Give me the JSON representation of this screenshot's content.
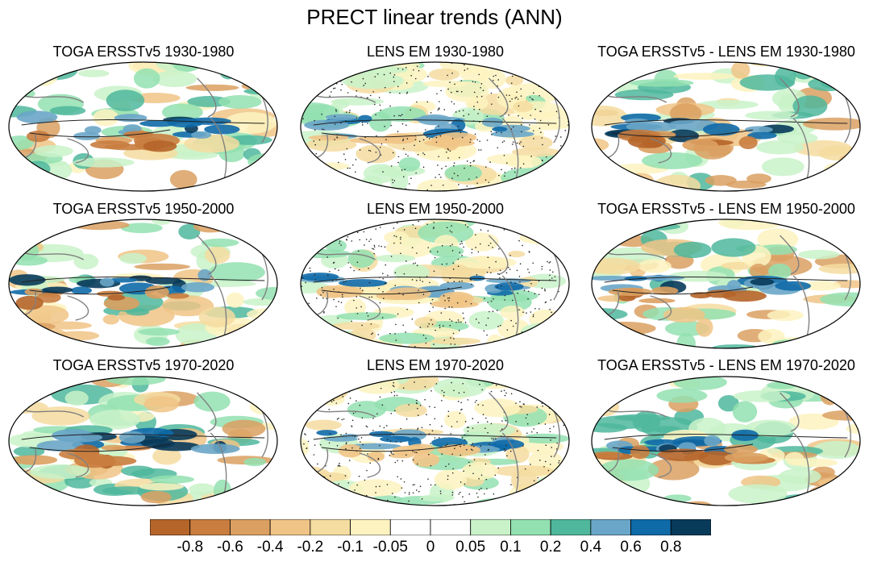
{
  "chart_data": {
    "type": "heatmap",
    "title": "PRECT linear trends (ANN)",
    "projection": "Robinson (global, Pacific-centered)",
    "variable": "PRECT",
    "season": "ANN",
    "panels": [
      {
        "row": 0,
        "col": 0,
        "title": "TOGA ERSSTv5 1930-1980",
        "stippling": false
      },
      {
        "row": 0,
        "col": 1,
        "title": "LENS EM 1930-1980",
        "stippling": true
      },
      {
        "row": 0,
        "col": 2,
        "title": "TOGA ERSSTv5 - LENS EM 1930-1980",
        "stippling": false
      },
      {
        "row": 1,
        "col": 0,
        "title": "TOGA ERSSTv5 1950-2000",
        "stippling": false
      },
      {
        "row": 1,
        "col": 1,
        "title": "LENS EM 1950-2000",
        "stippling": true
      },
      {
        "row": 1,
        "col": 2,
        "title": "TOGA ERSSTv5 - LENS EM 1950-2000",
        "stippling": false
      },
      {
        "row": 2,
        "col": 0,
        "title": "TOGA ERSSTv5 1970-2020",
        "stippling": false
      },
      {
        "row": 2,
        "col": 1,
        "title": "LENS EM 1970-2020",
        "stippling": true
      },
      {
        "row": 2,
        "col": 2,
        "title": "TOGA ERSSTv5 - LENS EM 1970-2020",
        "stippling": false
      }
    ],
    "colorbar": {
      "orientation": "horizontal",
      "placement": "bottom",
      "tick_labels": [
        "-0.8",
        "-0.6",
        "-0.4",
        "-0.2",
        "-0.1",
        "-0.05",
        "0",
        "0.05",
        "0.1",
        "0.2",
        "0.4",
        "0.6",
        "0.8"
      ],
      "levels": [
        -0.8,
        -0.6,
        -0.4,
        -0.2,
        -0.1,
        -0.05,
        0,
        0.05,
        0.1,
        0.2,
        0.4,
        0.6,
        0.8
      ],
      "colors": [
        "#b5652a",
        "#c97d3f",
        "#dba061",
        "#f0c486",
        "#f5dca0",
        "#fdf3c0",
        "#ffffff",
        "#ffffff",
        "#c9f2c9",
        "#93e0b0",
        "#4fb79c",
        "#6aa6c8",
        "#0f6aa8",
        "#083a5a"
      ]
    }
  }
}
